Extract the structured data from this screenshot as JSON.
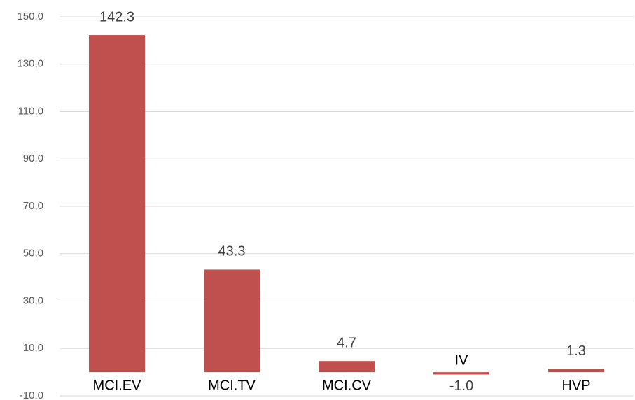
{
  "chart_data": {
    "type": "bar",
    "categories": [
      "MCI.EV",
      "MCI.TV",
      "MCI.CV",
      "IV",
      "HVP"
    ],
    "values": [
      142.3,
      43.3,
      4.7,
      -1.0,
      1.3
    ],
    "value_labels": [
      "142.3",
      "43.3",
      "4.7",
      "-1.0",
      "1.3"
    ],
    "color": "#c0504d",
    "ylim": [
      -10,
      150
    ],
    "yticks": [
      {
        "value": -10,
        "label": "-10.0"
      },
      {
        "value": 10,
        "label": "10,0"
      },
      {
        "value": 30,
        "label": "30,0"
      },
      {
        "value": 50,
        "label": "50,0"
      },
      {
        "value": 70,
        "label": "70,0"
      },
      {
        "value": 90,
        "label": "90,0"
      },
      {
        "value": 110,
        "label": "110,0"
      },
      {
        "value": 130,
        "label": "130,0"
      },
      {
        "value": 150,
        "label": "150,0"
      }
    ],
    "grid": true
  }
}
